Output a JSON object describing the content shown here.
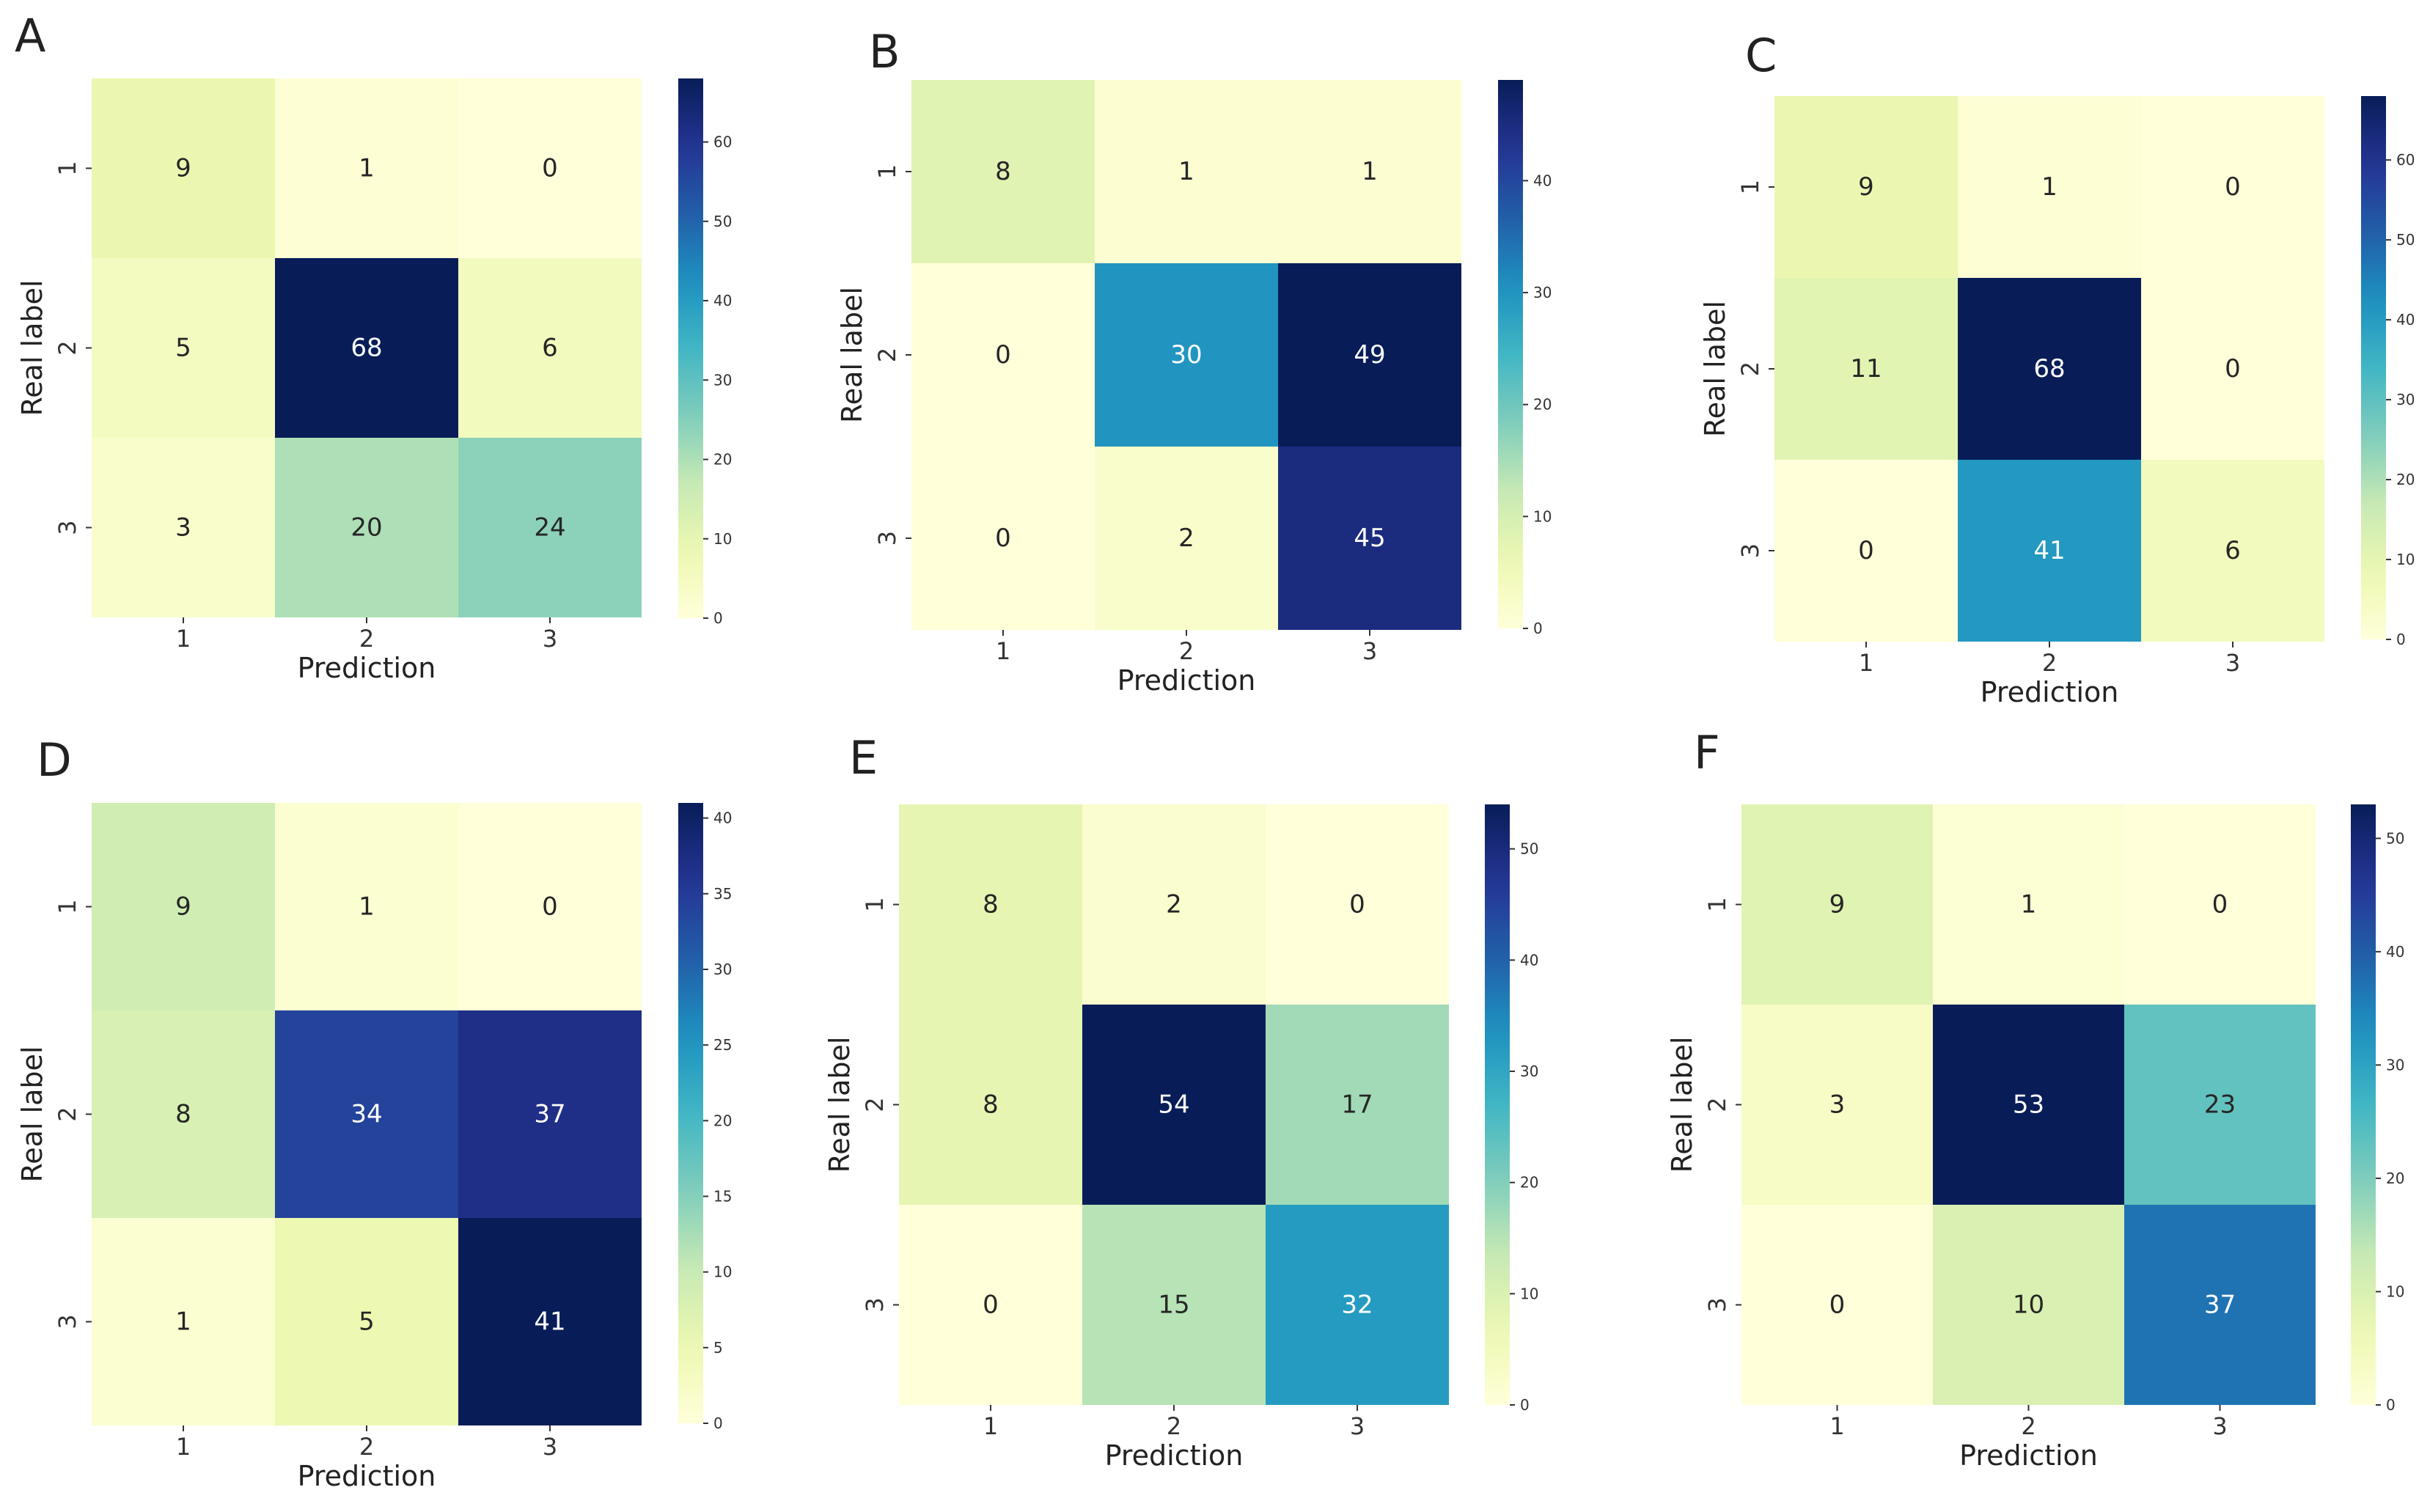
{
  "colormap": {
    "name": "YlGnBu",
    "stops": [
      "#ffffd9",
      "#edf8b1",
      "#c7e9b4",
      "#7fcdbb",
      "#41b6c4",
      "#1d91c0",
      "#225ea8",
      "#253494",
      "#081d58"
    ]
  },
  "chart_data": [
    {
      "panel": "A",
      "type": "heatmap",
      "xlabel": "Prediction",
      "ylabel": "Real label",
      "x_categories": [
        "1",
        "2",
        "3"
      ],
      "y_categories": [
        "1",
        "2",
        "3"
      ],
      "values": [
        [
          9,
          1,
          0
        ],
        [
          5,
          68,
          6
        ],
        [
          3,
          20,
          24
        ]
      ],
      "colorbar": {
        "min": 0,
        "max": 68,
        "ticks": [
          0,
          10,
          20,
          30,
          40,
          50,
          60
        ]
      }
    },
    {
      "panel": "B",
      "type": "heatmap",
      "xlabel": "Prediction",
      "ylabel": "Real label",
      "x_categories": [
        "1",
        "2",
        "3"
      ],
      "y_categories": [
        "1",
        "2",
        "3"
      ],
      "values": [
        [
          8,
          1,
          1
        ],
        [
          0,
          30,
          49
        ],
        [
          0,
          2,
          45
        ]
      ],
      "colorbar": {
        "min": 0,
        "max": 49,
        "ticks": [
          0,
          10,
          20,
          30,
          40
        ]
      }
    },
    {
      "panel": "C",
      "type": "heatmap",
      "xlabel": "Prediction",
      "ylabel": "Real label",
      "x_categories": [
        "1",
        "2",
        "3"
      ],
      "y_categories": [
        "1",
        "2",
        "3"
      ],
      "values": [
        [
          9,
          1,
          0
        ],
        [
          11,
          68,
          0
        ],
        [
          0,
          41,
          6
        ]
      ],
      "colorbar": {
        "min": 0,
        "max": 68,
        "ticks": [
          0,
          10,
          20,
          30,
          40,
          50,
          60
        ]
      }
    },
    {
      "panel": "D",
      "type": "heatmap",
      "xlabel": "Prediction",
      "ylabel": "Real label",
      "x_categories": [
        "1",
        "2",
        "3"
      ],
      "y_categories": [
        "1",
        "2",
        "3"
      ],
      "values": [
        [
          9,
          1,
          0
        ],
        [
          8,
          34,
          37
        ],
        [
          1,
          5,
          41
        ]
      ],
      "colorbar": {
        "min": 0,
        "max": 41,
        "ticks": [
          0,
          5,
          10,
          15,
          20,
          25,
          30,
          35,
          40
        ]
      }
    },
    {
      "panel": "E",
      "type": "heatmap",
      "xlabel": "Prediction",
      "ylabel": "Real label",
      "x_categories": [
        "1",
        "2",
        "3"
      ],
      "y_categories": [
        "1",
        "2",
        "3"
      ],
      "values": [
        [
          8,
          2,
          0
        ],
        [
          8,
          54,
          17
        ],
        [
          0,
          15,
          32
        ]
      ],
      "colorbar": {
        "min": 0,
        "max": 54,
        "ticks": [
          0,
          10,
          20,
          30,
          40,
          50
        ]
      }
    },
    {
      "panel": "F",
      "type": "heatmap",
      "xlabel": "Prediction",
      "ylabel": "Real label",
      "x_categories": [
        "1",
        "2",
        "3"
      ],
      "y_categories": [
        "1",
        "2",
        "3"
      ],
      "values": [
        [
          9,
          1,
          0
        ],
        [
          3,
          53,
          23
        ],
        [
          0,
          10,
          37
        ]
      ],
      "colorbar": {
        "min": 0,
        "max": 53,
        "ticks": [
          0,
          10,
          20,
          30,
          40,
          50
        ]
      }
    }
  ]
}
